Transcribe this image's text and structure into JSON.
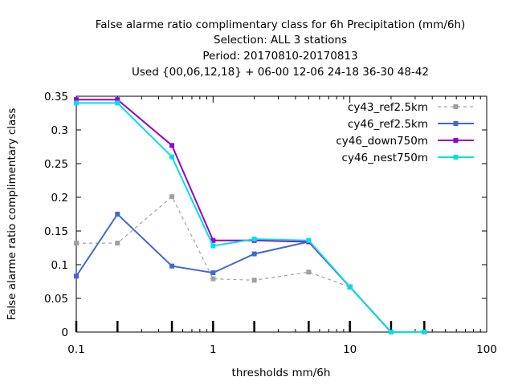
{
  "chart_data": {
    "type": "line",
    "title_lines": [
      "False alarme ratio complimentary class  for 6h Precipitation (mm/6h)",
      "Selection: ALL      3 stations",
      "Period: 20170810-20170813",
      "Used {00,06,12,18} + 06-00 12-06 24-18 36-30 48-42"
    ],
    "xlabel": "thresholds mm/6h",
    "ylabel": "False alarme ratio complimentary class",
    "x_scale": "log",
    "xlim": [
      0.1,
      100
    ],
    "ylim": [
      0,
      0.35
    ],
    "x_ticks": [
      0.1,
      1,
      10,
      100
    ],
    "x_tick_labels": [
      "0.1",
      "1",
      "10",
      "100"
    ],
    "y_ticks": [
      0,
      0.05,
      0.1,
      0.15,
      0.2,
      0.25,
      0.3,
      0.35
    ],
    "y_tick_labels": [
      "0",
      "0.05",
      "0.1",
      "0.15",
      "0.2",
      "0.25",
      "0.3",
      "0.35"
    ],
    "legend_position": "top-right",
    "grid": false,
    "x": [
      0.1,
      0.2,
      0.5,
      1,
      2,
      5,
      10,
      20,
      35
    ],
    "series": [
      {
        "name": "cy43_ref2.5km",
        "color": "#a0a0a0",
        "dashed": true,
        "values": [
          0.132,
          0.132,
          0.201,
          0.079,
          0.077,
          0.089,
          0.067,
          0.0,
          0.0
        ]
      },
      {
        "name": "cy46_ref2.5km",
        "color": "#4169cd",
        "dashed": false,
        "values": [
          0.083,
          0.175,
          0.098,
          0.088,
          0.116,
          0.134,
          0.067,
          0.0,
          0.0
        ]
      },
      {
        "name": "cy46_down750m",
        "color": "#9400d3",
        "dashed": false,
        "values": [
          0.345,
          0.345,
          0.277,
          0.136,
          0.136,
          0.134,
          0.067,
          0.0,
          0.0
        ]
      },
      {
        "name": "cy46_nest750m",
        "color": "#00e0e0",
        "dashed": false,
        "values": [
          0.34,
          0.34,
          0.26,
          0.128,
          0.138,
          0.136,
          0.067,
          0.0,
          0.0
        ]
      }
    ]
  }
}
